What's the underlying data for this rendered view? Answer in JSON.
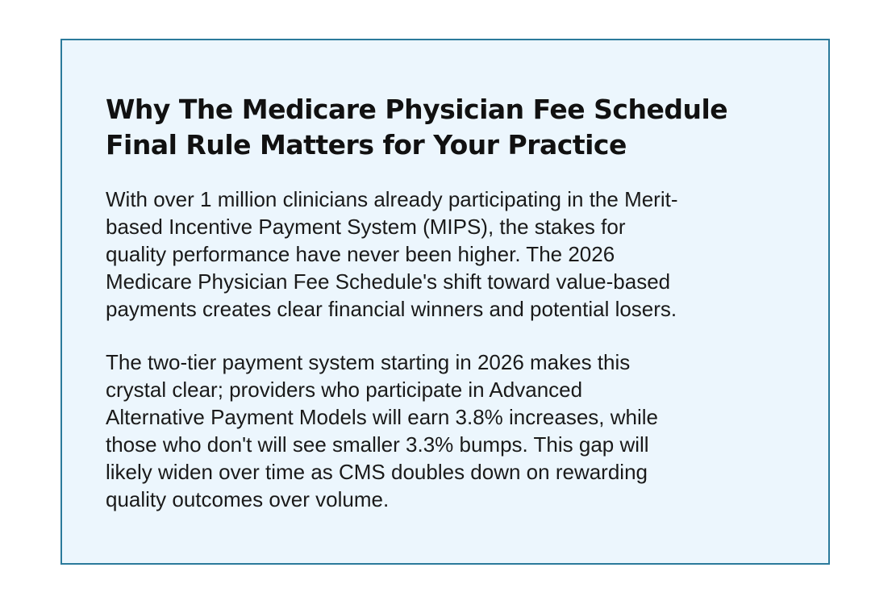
{
  "article": {
    "heading": [
      "Why The Medicare Physician Fee Schedule",
      "Final Rule Matters for Your Practice"
    ],
    "paragraphs": [
      [
        "With over 1 million clinicians already participating in the Merit-",
        "based Incentive Payment System (MIPS), the stakes for",
        "quality performance have never been higher. The 2026",
        "Medicare Physician Fee Schedule's shift toward value-based",
        "payments creates clear financial winners and potential losers."
      ],
      [
        "The two-tier payment system starting in 2026 makes this",
        "crystal clear; providers who participate in Advanced",
        "Alternative Payment Models will earn 3.8% increases, while",
        "those who don't will see smaller 3.3% bumps. This gap will",
        "likely widen over time as CMS doubles down on rewarding",
        "quality outcomes over volume."
      ]
    ]
  },
  "colors": {
    "box_background": "#ecf6fd",
    "box_border": "#2b7a9b",
    "text": "#111111"
  }
}
